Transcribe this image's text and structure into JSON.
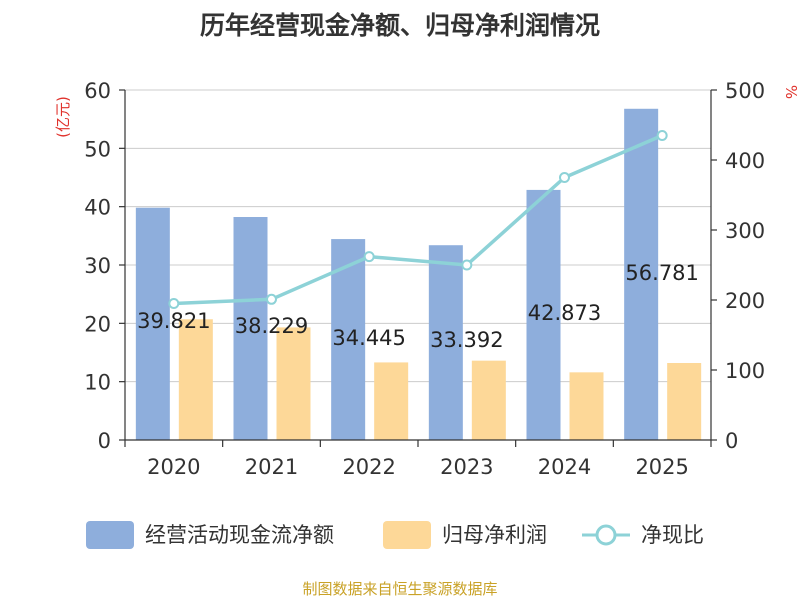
{
  "chart_data": {
    "type": "bar",
    "title": "历年经营现金净额、归母净利润情况",
    "categories": [
      "2020",
      "2021",
      "2022",
      "2023",
      "2024",
      "2025"
    ],
    "series": [
      {
        "name": "经营活动现金流净额",
        "type": "bar",
        "axis": "left",
        "values": [
          39.821,
          38.229,
          34.445,
          33.392,
          42.873,
          56.781
        ]
      },
      {
        "name": "归母净利润",
        "type": "bar",
        "axis": "left",
        "values": [
          20.7,
          19.3,
          13.3,
          13.6,
          11.6,
          13.2
        ]
      },
      {
        "name": "净现比",
        "type": "line",
        "axis": "right",
        "values": [
          195,
          201,
          262,
          250,
          375,
          435
        ]
      }
    ],
    "data_labels": [
      "39.821",
      "38.229",
      "34.445",
      "33.392",
      "42.873",
      "56.781"
    ],
    "ylabel_left": "(亿元)",
    "ylabel_right": "%",
    "ylim_left": [
      0,
      60
    ],
    "yticks_left": [
      0,
      10,
      20,
      30,
      40,
      50,
      60
    ],
    "ylim_right": [
      0,
      500
    ],
    "yticks_right": [
      0,
      100,
      200,
      300,
      400,
      500
    ],
    "grid": true,
    "legend_position": "bottom"
  },
  "colors": {
    "bar_primary": "#8eaedc",
    "bar_secondary": "#fdd898",
    "line": "#8dd2d7",
    "axis_title": "#e0312b",
    "footer": "#c9a227"
  },
  "footer": {
    "source": "制图数据来自恒生聚源数据库"
  }
}
